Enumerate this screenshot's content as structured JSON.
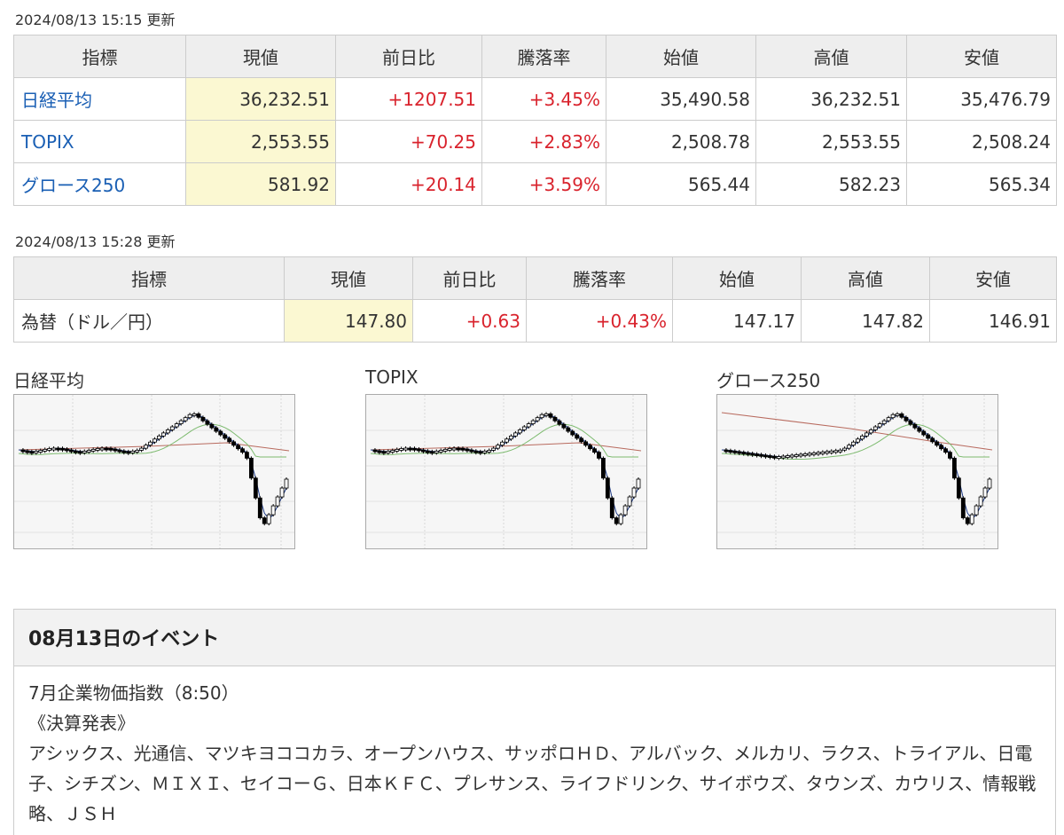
{
  "stock_table": {
    "updated": "2024/08/13 15:15 更新",
    "headers": [
      "指標",
      "現値",
      "前日比",
      "騰落率",
      "始値",
      "高値",
      "安値"
    ],
    "rows": [
      {
        "name": "日経平均",
        "current": "36,232.51",
        "change": "+1207.51",
        "rate": "+3.45%",
        "open": "35,490.58",
        "high": "36,232.51",
        "low": "35,476.79"
      },
      {
        "name": "TOPIX",
        "current": "2,553.55",
        "change": "+70.25",
        "rate": "+2.83%",
        "open": "2,508.78",
        "high": "2,553.55",
        "low": "2,508.24"
      },
      {
        "name": "グロース250",
        "current": "581.92",
        "change": "+20.14",
        "rate": "+3.59%",
        "open": "565.44",
        "high": "582.23",
        "low": "565.34"
      }
    ]
  },
  "fx_table": {
    "updated": "2024/08/13 15:28 更新",
    "headers": [
      "指標",
      "現値",
      "前日比",
      "騰落率",
      "始値",
      "高値",
      "安値"
    ],
    "rows": [
      {
        "name": "為替（ドル／円）",
        "current": "147.80",
        "change": "+0.63",
        "rate": "+0.43%",
        "open": "147.17",
        "high": "147.82",
        "low": "146.91"
      }
    ]
  },
  "charts": {
    "titles": [
      "日経平均",
      "TOPIX",
      "グロース250"
    ]
  },
  "colors": {
    "link": "#1a5fb4",
    "up": "#d9232d",
    "current_bg": "#fbf8d2",
    "ma_short": "#1f3c88",
    "ma_mid": "#7dbb6f",
    "ma_long": "#b86a5e"
  },
  "events": {
    "title": "08月13日のイベント",
    "line1": "7月企業物価指数（8:50）",
    "line2": "《決算発表》",
    "line3": "アシックス、光通信、マツキヨココカラ、オープンハウス、サッポロＨＤ、アルバック、メルカリ、ラクス、トライアル、日電子、シチズン、ＭＩＸＩ、セイコーＧ、日本ＫＦＣ、プレサンス、ライフドリンク、サイボウズ、タウンズ、カウリス、情報戦略、ＪＳＨ"
  }
}
